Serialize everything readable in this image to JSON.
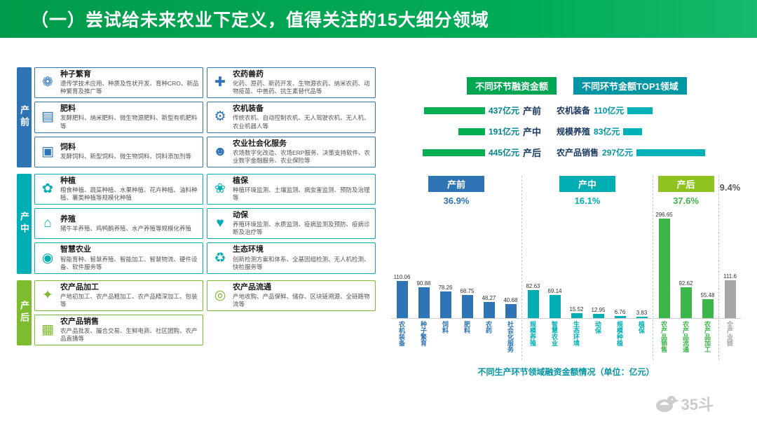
{
  "header": {
    "title": "（一）尝试给未来农业下定义，值得关注的15大细分领域"
  },
  "sections": [
    {
      "id": "pre",
      "label": "产前",
      "color": "#2E74B5",
      "cards": [
        {
          "icon": "seed-breeding-icon",
          "title": "种子繁育",
          "desc": "遗传学技术应用、种质及性状开发、育种CRO、新品种繁育及推广等"
        },
        {
          "icon": "pesticide-vet-drug-icon",
          "title": "农药兽药",
          "desc": "化药、原药、新药开发、生物源农药、纳米农药、动物疫苗、中兽药、抗生素替代品等"
        },
        {
          "icon": "fertilizer-icon",
          "title": "肥料",
          "desc": "发酵肥料、纳米肥料、微生物源肥料、新型有机肥料等"
        },
        {
          "icon": "machinery-icon",
          "title": "农机装备",
          "desc": "传统农机、自动控制农机、无人驾驶农机、无人机、农业机器人等"
        },
        {
          "icon": "feed-icon",
          "title": "饲料",
          "desc": "发酵饲料、新型饲料、微生物饲料、饲料添加剂等"
        },
        {
          "icon": "social-service-icon",
          "title": "农业社会化服务",
          "desc": "农场数字化改造、农场ERP服务、决策支持软件、农业数字金融服务、农业保险等"
        }
      ]
    },
    {
      "id": "mid",
      "label": "产中",
      "color": "#00AEB4",
      "cards": [
        {
          "icon": "planting-icon",
          "title": "种植",
          "desc": "粮食种植、蔬菜种植、水果种植、花卉种植、油料种植、薯类种植等规模化种植"
        },
        {
          "icon": "plant-protection-icon",
          "title": "植保",
          "desc": "种植环境监测、土壤监测、病虫害监测、预防及治理等"
        },
        {
          "icon": "breeding-icon",
          "title": "养殖",
          "desc": "猪牛羊养殖、鸡鸭鹅养殖、水产养殖等规模化养殖"
        },
        {
          "icon": "animal-protection-icon",
          "title": "动保",
          "desc": "养殖环境监测、水质监测、疫病监测及预防、疫病诊断及治疗等"
        },
        {
          "icon": "smart-agriculture-icon",
          "title": "智慧农业",
          "desc": "智能育种、智慧养殖、智能加工、智慧物流、硬件设备、软件服务等"
        },
        {
          "icon": "eco-environment-icon",
          "title": "生态环境",
          "desc": "创新检测方案和体系、全基因组检测、无人机检测、快检服务等"
        }
      ]
    },
    {
      "id": "post",
      "label": "产后",
      "color": "#7DBB2F",
      "cards": [
        {
          "icon": "processing-icon",
          "title": "农产品加工",
          "desc": "产地初加工、农产品粗加工、农产品精深加工、包装等"
        },
        {
          "icon": "distribution-icon",
          "title": "农产品流通",
          "desc": "产地收购、产品保鲜、储存、区块链溯源、全链路物流等"
        },
        {
          "icon": "sales-icon",
          "title": "农产品销售",
          "desc": "农产品批发、撮合交易、生鲜电商、社区团购、农产品直播等"
        }
      ]
    }
  ],
  "funding": {
    "left_header": "不同环节融资金额",
    "right_header": "不同环节金额TOP1领域",
    "left_color": "#00B050",
    "right_color": "#00B0B9",
    "rows": [
      {
        "stage": "产前",
        "amount": "437",
        "field": "农机装备",
        "top_amount": "110",
        "unit": "亿元"
      },
      {
        "stage": "产中",
        "amount": "191",
        "field": "规模养殖",
        "top_amount": "83",
        "unit": "亿元"
      },
      {
        "stage": "产后",
        "amount": "445",
        "field": "农产品销售",
        "top_amount": "297",
        "unit": "亿元"
      }
    ]
  },
  "chart_data": {
    "type": "bar",
    "caption": "不同生产环节领域融资金额情况（单位：亿元）",
    "unit": "亿元",
    "ylim": [
      0,
      300
    ],
    "groups": [
      {
        "name": "产前",
        "percent": "36.9%",
        "color": "#2E74B5",
        "badge_color": "#2E74B5",
        "pct_color": "#2E74B5",
        "show_badge": true,
        "categories": [
          "农机装备",
          "种子繁育",
          "饲料",
          "肥料",
          "农药",
          "社会化服务"
        ],
        "values": [
          110.06,
          90.88,
          78.26,
          68.75,
          48.27,
          40.68
        ]
      },
      {
        "name": "产中",
        "percent": "16.1%",
        "color": "#00AEB4",
        "badge_color": "#00AEB4",
        "pct_color": "#00AEB4",
        "show_badge": true,
        "categories": [
          "规模养殖",
          "智慧农业",
          "生态环境",
          "动保",
          "规模种植",
          "植保"
        ],
        "values": [
          82.63,
          69.14,
          15.52,
          12.95,
          6.76,
          3.83
        ]
      },
      {
        "name": "产后",
        "percent": "37.6%",
        "color": "#3CB54A",
        "badge_color": "#8FC31F",
        "pct_color": "#3CB54A",
        "show_badge": true,
        "categories": [
          "农产品销售",
          "农产品流通",
          "农产品加工"
        ],
        "values": [
          296.65,
          92.62,
          55.48
        ]
      },
      {
        "name": "全产业链",
        "percent": "9.4%",
        "color": "#A6A6A6",
        "badge_color": "#A6A6A6",
        "pct_color": "#595959",
        "show_badge": false,
        "categories": [
          "全产业链"
        ],
        "values": [
          111.6
        ]
      }
    ]
  },
  "watermark": {
    "text": "35斗"
  }
}
